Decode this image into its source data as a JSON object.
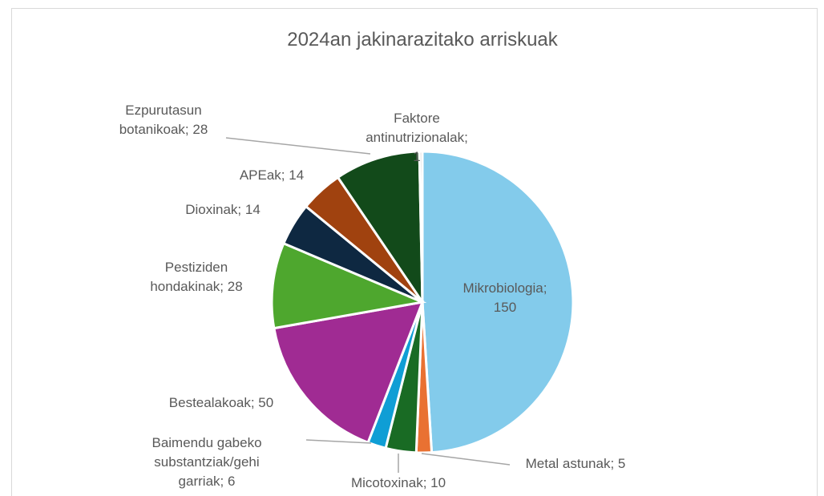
{
  "chart_data": {
    "type": "pie",
    "title": "2024an jakinarazitako arriskuak",
    "values": [
      150,
      5,
      10,
      6,
      50,
      28,
      14,
      14,
      28,
      1
    ],
    "value_labels": [
      "Mikrobiologia;\n150",
      "Metal astunak; 5",
      "Micotoxinak; 10",
      "Baimendu gabeko\nsubstantziak/gehi\ngarriak; 6",
      "Bestealakoak; 50",
      "Pestiziden\nhondakinak; 28",
      "Dioxinak; 14",
      "APEak; 14",
      "Ezpurutasun\nbotanikoak; 28",
      "Faktore\nantinutrizionalak;\n1"
    ],
    "colors": [
      "#83cbeb",
      "#e97132",
      "#196b24",
      "#0f9ed5",
      "#a02b93",
      "#4ea72e",
      "#0e2841",
      "#a0420f",
      "#124a1a",
      "#d9d9d9"
    ]
  }
}
